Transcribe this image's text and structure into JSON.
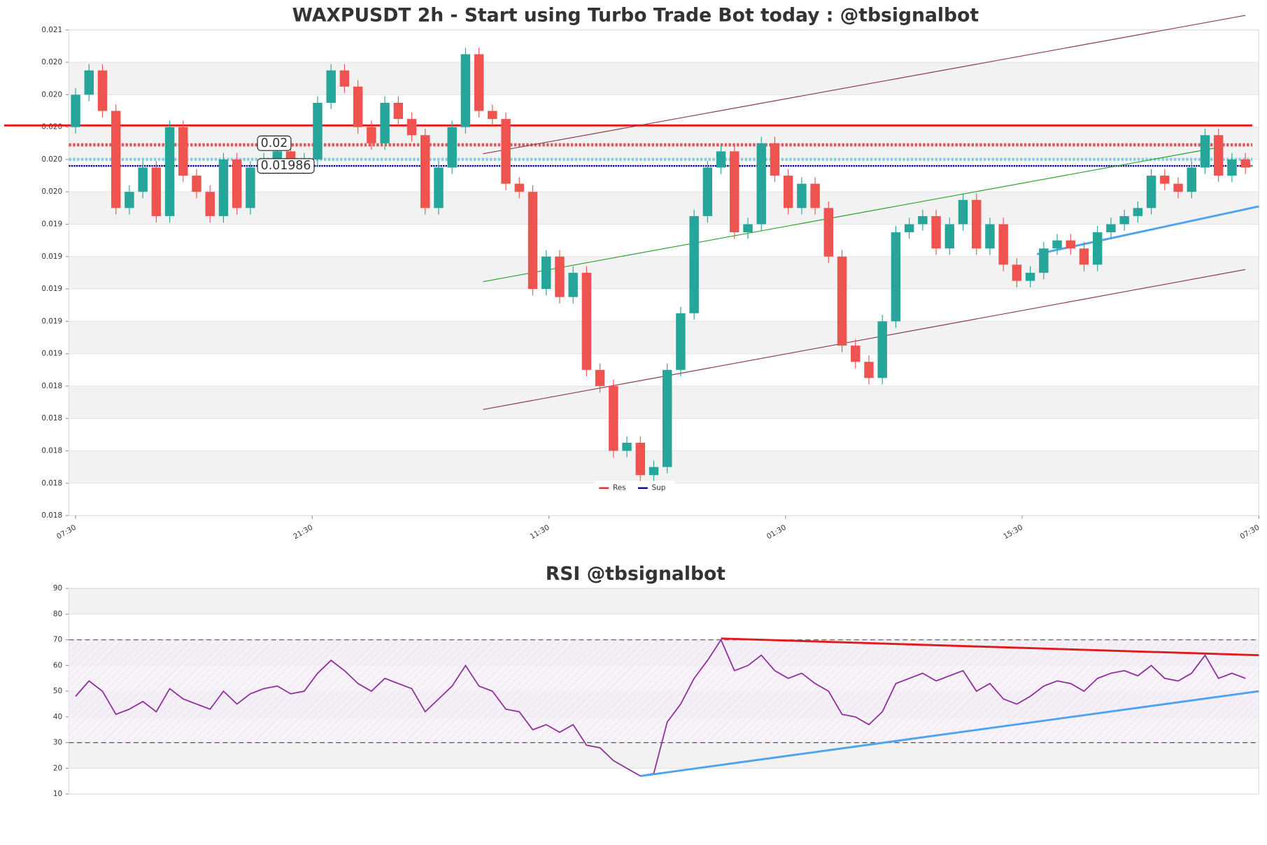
{
  "chart_data": [
    {
      "type": "candlestick",
      "title": "WAXPUSDT 2h - Start using Turbo Trade Bot today : @tbsignalbot",
      "up_color": "#26a69a",
      "down_color": "#ef5350",
      "open": [
        0.0201,
        0.0203,
        0.02045,
        0.0202,
        0.0196,
        0.0197,
        0.01985,
        0.01955,
        0.0201,
        0.0198,
        0.0197,
        0.01955,
        0.0199,
        0.0196,
        0.01985,
        0.0199,
        0.01995,
        0.01985,
        0.0199,
        0.02025,
        0.02045,
        0.02035,
        0.0201,
        0.02,
        0.02025,
        0.02015,
        0.02005,
        0.0196,
        0.01985,
        0.0201,
        0.02055,
        0.0202,
        0.02015,
        0.01975,
        0.0197,
        0.0191,
        0.0193,
        0.01905,
        0.0192,
        0.0186,
        0.0185,
        0.0181,
        0.01815,
        0.01795,
        0.018,
        0.0186,
        0.01895,
        0.01955,
        0.01985,
        0.01995,
        0.01945,
        0.0195,
        0.02,
        0.0198,
        0.0196,
        0.01975,
        0.0196,
        0.0193,
        0.01875,
        0.01865,
        0.01855,
        0.0189,
        0.01945,
        0.0195,
        0.01955,
        0.01935,
        0.0195,
        0.01965,
        0.01935,
        0.0195,
        0.01925,
        0.01915,
        0.0192,
        0.01935,
        0.0194,
        0.01935,
        0.01925,
        0.01945,
        0.0195,
        0.01955,
        0.0196,
        0.0198,
        0.01975,
        0.0197,
        0.01985,
        0.02005,
        0.0198,
        0.0199
      ],
      "high": [
        0.02034,
        0.02049,
        0.02049,
        0.02024,
        0.01974,
        0.01989,
        0.01989,
        0.02014,
        0.02014,
        0.01984,
        0.01974,
        0.01994,
        0.01994,
        0.01989,
        0.01994,
        0.01999,
        0.01999,
        0.01994,
        0.02029,
        0.02049,
        0.02049,
        0.02039,
        0.02014,
        0.02029,
        0.02029,
        0.02019,
        0.02009,
        0.01989,
        0.02014,
        0.02059,
        0.02059,
        0.02024,
        0.02019,
        0.01979,
        0.01974,
        0.01934,
        0.01934,
        0.01924,
        0.01924,
        0.01864,
        0.01854,
        0.01819,
        0.01819,
        0.01804,
        0.01864,
        0.01899,
        0.01959,
        0.01989,
        0.01999,
        0.01999,
        0.01954,
        0.02004,
        0.02004,
        0.01984,
        0.01979,
        0.01979,
        0.01964,
        0.01934,
        0.01879,
        0.01869,
        0.01894,
        0.01949,
        0.01954,
        0.01959,
        0.01959,
        0.01954,
        0.01969,
        0.01969,
        0.01954,
        0.01954,
        0.01929,
        0.01924,
        0.01939,
        0.01944,
        0.01944,
        0.01939,
        0.01949,
        0.01954,
        0.01959,
        0.01964,
        0.01984,
        0.01984,
        0.01979,
        0.01989,
        0.02009,
        0.02009,
        0.01994,
        0.01994
      ],
      "low": [
        0.02006,
        0.02026,
        0.02016,
        0.01956,
        0.01956,
        0.01966,
        0.01951,
        0.01951,
        0.01976,
        0.01966,
        0.01951,
        0.01951,
        0.01956,
        0.01956,
        0.01981,
        0.01986,
        0.01981,
        0.01981,
        0.01986,
        0.02021,
        0.02031,
        0.02006,
        0.01996,
        0.01996,
        0.02011,
        0.02001,
        0.01956,
        0.01956,
        0.01981,
        0.02006,
        0.02016,
        0.02011,
        0.01971,
        0.01966,
        0.01906,
        0.01906,
        0.01901,
        0.01901,
        0.01856,
        0.01846,
        0.01806,
        0.01806,
        0.01791,
        0.01791,
        0.01796,
        0.01856,
        0.01891,
        0.01951,
        0.01981,
        0.01941,
        0.01941,
        0.01946,
        0.01976,
        0.01956,
        0.01956,
        0.01956,
        0.01926,
        0.01871,
        0.01861,
        0.01851,
        0.01851,
        0.01886,
        0.01941,
        0.01946,
        0.01931,
        0.01931,
        0.01946,
        0.01931,
        0.01931,
        0.01921,
        0.01911,
        0.01911,
        0.01916,
        0.01931,
        0.01931,
        0.01921,
        0.01921,
        0.01941,
        0.01946,
        0.01951,
        0.01956,
        0.01971,
        0.01966,
        0.01966,
        0.01981,
        0.01976,
        0.01976,
        0.01981
      ],
      "close": [
        0.0203,
        0.02045,
        0.0202,
        0.0196,
        0.0197,
        0.01985,
        0.01955,
        0.0201,
        0.0198,
        0.0197,
        0.01955,
        0.0199,
        0.0196,
        0.01985,
        0.0199,
        0.01995,
        0.01985,
        0.0199,
        0.02025,
        0.02045,
        0.02035,
        0.0201,
        0.02,
        0.02025,
        0.02015,
        0.02005,
        0.0196,
        0.01985,
        0.0201,
        0.02055,
        0.0202,
        0.02015,
        0.01975,
        0.0197,
        0.0191,
        0.0193,
        0.01905,
        0.0192,
        0.0186,
        0.0185,
        0.0181,
        0.01815,
        0.01795,
        0.018,
        0.0186,
        0.01895,
        0.01955,
        0.01985,
        0.01995,
        0.01945,
        0.0195,
        0.02,
        0.0198,
        0.0196,
        0.01975,
        0.0196,
        0.0193,
        0.01875,
        0.01865,
        0.01855,
        0.0189,
        0.01945,
        0.0195,
        0.01955,
        0.01935,
        0.0195,
        0.01965,
        0.01935,
        0.0195,
        0.01925,
        0.01915,
        0.0192,
        0.01935,
        0.0194,
        0.01935,
        0.01925,
        0.01945,
        0.0195,
        0.01955,
        0.0196,
        0.0198,
        0.01975,
        0.0197,
        0.01985,
        0.02005,
        0.0198,
        0.0199,
        0.01985
      ],
      "xlim": [
        -0.5,
        88
      ],
      "xticks": [
        {
          "value": 0,
          "label": "07:30"
        },
        {
          "value": 17.6,
          "label": "21:30"
        },
        {
          "value": 35.2,
          "label": "11:30"
        },
        {
          "value": 52.8,
          "label": "01:30"
        },
        {
          "value": 70.4,
          "label": "15:30"
        },
        {
          "value": 88,
          "label": "07:30"
        }
      ],
      "ylim": [
        0.0177,
        0.0207
      ],
      "yticks": [
        {
          "value": 0.0177,
          "label": "0.018"
        },
        {
          "value": 0.0179,
          "label": "0.018"
        },
        {
          "value": 0.0181,
          "label": "0.018"
        },
        {
          "value": 0.0183,
          "label": "0.018"
        },
        {
          "value": 0.0185,
          "label": "0.018"
        },
        {
          "value": 0.0187,
          "label": "0.019"
        },
        {
          "value": 0.0189,
          "label": "0.019"
        },
        {
          "value": 0.0191,
          "label": "0.019"
        },
        {
          "value": 0.0193,
          "label": "0.019"
        },
        {
          "value": 0.0195,
          "label": "0.019"
        },
        {
          "value": 0.0197,
          "label": "0.020"
        },
        {
          "value": 0.0199,
          "label": "0.020"
        },
        {
          "value": 0.0201,
          "label": "0.020"
        },
        {
          "value": 0.0203,
          "label": "0.020"
        },
        {
          "value": 0.0205,
          "label": "0.020"
        },
        {
          "value": 0.0207,
          "label": "0.021"
        }
      ],
      "levels": [
        {
          "name": "Res",
          "color": "#d62728",
          "value": {
            "value": 0.01999,
            "label": "0.02"
          }
        },
        {
          "name": "Sup",
          "color": "#00008b",
          "value": {
            "value": 0.01986,
            "label": "0.01986"
          }
        }
      ],
      "extra_levels": [
        {
          "value": 0.02011,
          "color": "#e31a1c"
        },
        {
          "value": 0.0199,
          "color": "#5bc0de"
        }
      ],
      "trendlines": [
        {
          "color": "#8b3a4a",
          "x": [
            30.3,
            87
          ],
          "y": [
            0.019935,
            0.02079
          ]
        },
        {
          "color": "#8b3a4a",
          "x": [
            30.3,
            87
          ],
          "y": [
            0.018355,
            0.01922
          ]
        },
        {
          "color": "#2ca02c",
          "x": [
            30.3,
            84.7
          ],
          "y": [
            0.019145,
            0.01997
          ]
        },
        {
          "color": "#4da3f0",
          "x": [
            71.5,
            88
          ],
          "y": [
            0.019315,
            0.01961
          ]
        }
      ],
      "legend": "lower center",
      "grid": true
    },
    {
      "type": "line",
      "title": "RSI @tbsignalbot",
      "color": "#8e2a9c",
      "values": [
        48,
        54,
        50,
        41,
        43,
        46,
        42,
        51,
        47,
        45,
        43,
        50,
        45,
        49,
        51,
        52,
        49,
        50,
        57,
        62,
        58,
        53,
        50,
        55,
        53,
        51,
        42,
        47,
        52,
        60,
        52,
        50,
        43,
        42,
        35,
        37,
        34,
        37,
        29,
        28,
        23,
        20,
        17,
        18,
        38,
        45,
        55,
        62,
        70,
        58,
        60,
        64,
        58,
        55,
        57,
        53,
        50,
        41,
        40,
        37,
        42,
        53,
        55,
        57,
        54,
        56,
        58,
        50,
        53,
        47,
        45,
        48,
        52,
        54,
        53,
        50,
        55,
        57,
        58,
        56,
        60,
        55,
        54,
        57,
        64,
        55,
        57,
        55
      ],
      "xlim": [
        -0.5,
        88
      ],
      "ylim": [
        10,
        90
      ],
      "yticks": [
        10,
        20,
        30,
        40,
        50,
        60,
        70,
        80,
        90
      ],
      "bands": [
        30,
        70
      ],
      "trendlines": [
        {
          "color": "#e31a1c",
          "x": [
            48,
            88
          ],
          "y": [
            70.5,
            64
          ]
        },
        {
          "color": "#4da3f0",
          "x": [
            42,
            88
          ],
          "y": [
            17,
            50
          ]
        }
      ],
      "grid": true
    }
  ]
}
